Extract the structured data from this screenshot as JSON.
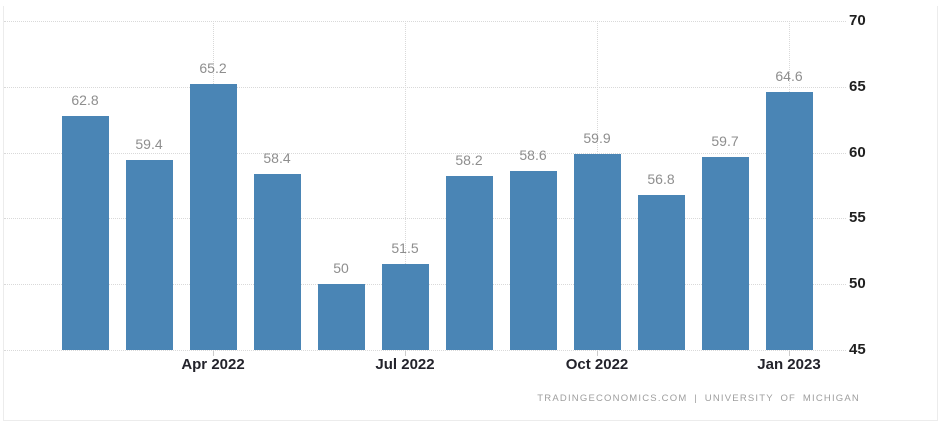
{
  "chart_data": {
    "type": "bar",
    "title": "",
    "xlabel": "",
    "ylabel": "",
    "values": [
      62.8,
      59.4,
      65.2,
      58.4,
      50,
      51.5,
      58.2,
      58.6,
      59.9,
      56.8,
      59.7,
      64.6
    ],
    "bar_labels": [
      "62.8",
      "59.4",
      "65.2",
      "58.4",
      "50",
      "51.5",
      "58.2",
      "58.6",
      "59.9",
      "56.8",
      "59.7",
      "64.6"
    ],
    "x_tick_labels": [
      "Apr 2022",
      "Jul 2022",
      "Oct 2022",
      "Jan 2023"
    ],
    "x_tick_bar_indices": [
      2,
      5,
      8,
      11
    ],
    "y_ticks": [
      45,
      50,
      55,
      60,
      65,
      70
    ],
    "y_tick_labels": [
      "45",
      "50",
      "55",
      "60",
      "65",
      "70"
    ],
    "ylim": [
      45,
      70
    ],
    "y_axis_side": "right",
    "grid": "dotted",
    "legend": "none",
    "bar_color": "#4a85b5",
    "value_label_color": "#8e8e8e",
    "axis_label_color": "#23232b",
    "grid_color": "#d9d9d9",
    "border_color": "#ececec"
  },
  "attribution": {
    "text": "TRADINGECONOMICS.COM | UNIVERSITY OF MICHIGAN"
  }
}
